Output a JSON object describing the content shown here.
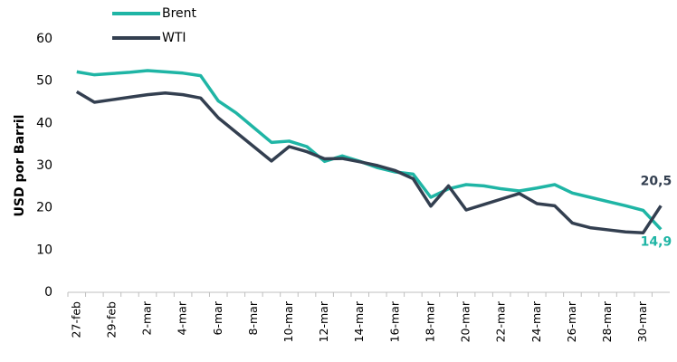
{
  "chart_data": {
    "type": "line",
    "y_label": "USD por Barril",
    "categories": [
      "27-feb",
      null,
      "29-feb",
      null,
      "2-mar",
      null,
      "4-mar",
      null,
      "6-mar",
      null,
      "8-mar",
      null,
      "10-mar",
      null,
      "12-mar",
      null,
      "14-mar",
      null,
      "16-mar",
      null,
      "18-mar",
      null,
      "20-mar",
      null,
      "22-mar",
      null,
      "24-mar",
      null,
      "26-mar",
      null,
      "28-mar",
      null,
      "30-mar",
      null
    ],
    "series": [
      {
        "name": "Brent",
        "color": "#1fb5a5",
        "values": [
          52.2,
          51.5,
          51.8,
          52.1,
          52.5,
          52.2,
          51.9,
          51.3,
          45.3,
          42.5,
          39,
          35.5,
          35.8,
          34.5,
          31,
          32.3,
          31,
          29.5,
          28.5,
          28,
          22.5,
          24.5,
          25.5,
          25.2,
          24.5,
          24,
          24.7,
          25.5,
          23.5,
          22.5,
          21.5,
          20.5,
          19.4,
          14.9
        ],
        "value_labels": [
          null,
          null,
          null,
          null,
          null,
          null,
          null,
          null,
          null,
          null,
          null,
          null,
          null,
          null,
          null,
          null,
          null,
          null,
          null,
          null,
          null,
          null,
          null,
          null,
          null,
          null,
          null,
          null,
          null,
          null,
          null,
          null,
          null,
          "14,9"
        ]
      },
      {
        "name": "WTI",
        "color": "#333f50",
        "values": [
          47.5,
          45,
          45.6,
          46.2,
          46.8,
          47.2,
          46.8,
          46,
          41.3,
          37.9,
          34.5,
          31.1,
          34.5,
          33.3,
          31.6,
          31.7,
          30.9,
          30,
          28.8,
          26.9,
          20.4,
          25.2,
          19.5,
          20.8,
          22.1,
          23.4,
          21,
          20.5,
          16.4,
          15.3,
          14.8,
          14.3,
          14.1,
          20.5
        ],
        "value_labels": [
          null,
          null,
          null,
          null,
          null,
          null,
          null,
          null,
          null,
          null,
          null,
          null,
          null,
          null,
          null,
          null,
          null,
          null,
          null,
          null,
          null,
          null,
          null,
          null,
          null,
          null,
          null,
          null,
          null,
          null,
          null,
          null,
          null,
          "20,5"
        ]
      }
    ],
    "ylim": [
      0,
      60
    ],
    "yticks": [
      0,
      10,
      20,
      30,
      40,
      50,
      60
    ]
  }
}
